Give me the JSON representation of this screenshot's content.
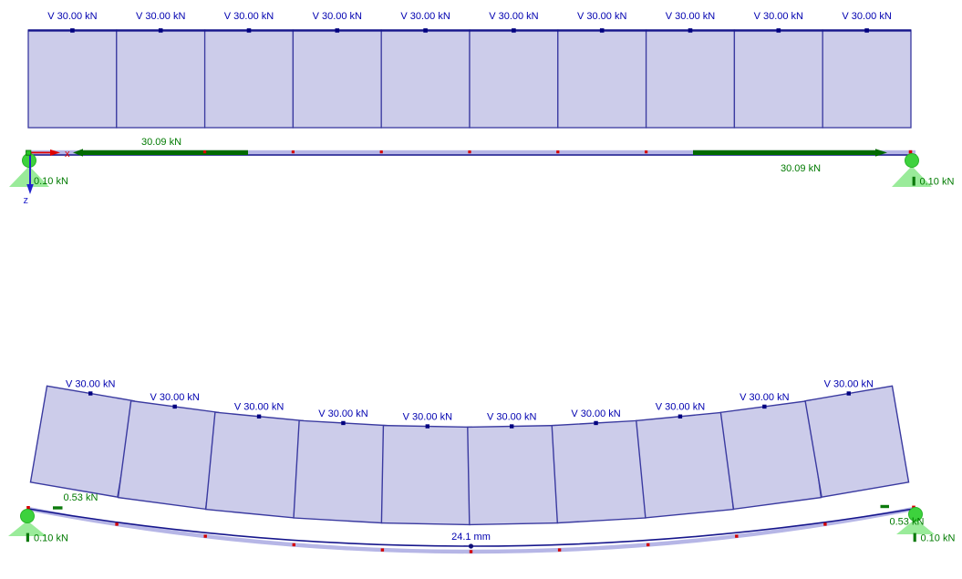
{
  "colors": {
    "background": "#ffffff",
    "panel_fill": "#ccccea",
    "panel_border": "#3a3aa0",
    "chord_line": "#16168c",
    "member_band": "#b6b6e6",
    "member_axis": "#16168c",
    "force_diagram_green": "#016a01",
    "text_green": "#007a00",
    "text_navy": "#0000b0",
    "support_circle_green": "#3dd23d",
    "support_triangle_green": "#9aeb9a",
    "reaction_bar_green": "#0c7a0c",
    "node_marker_green": "#27c427",
    "node_marker_red": "#d40000",
    "axis_x_red": "#e00000",
    "axis_z_blue": "#2222cc",
    "load_dot_navy": "#000080"
  },
  "load_view": {
    "panel_count": 10,
    "load_label": "V 30.00 kN",
    "axial_force_left_label": "30.09 kN",
    "axial_force_right_label": "30.09 kN",
    "reaction_left_label": "0.10 kN",
    "reaction_right_label": "0.10 kN",
    "axis_x_label": "x",
    "axis_z_label": "z"
  },
  "deformed_view": {
    "panel_count": 10,
    "load_label": "V 30.00 kN",
    "end_force_left_label": "0.53 kN",
    "end_force_right_label": "0.53 kN",
    "reaction_left_label": "0.10 kN",
    "reaction_right_label": "0.10 kN",
    "max_deflection_label": "24.1 mm"
  },
  "model_values": {
    "nodal_load_kN": 30.0,
    "axial_force_kN": 30.09,
    "vertical_reaction_kN": 0.1,
    "member_end_force_kN": 0.53,
    "max_deflection_mm": 24.1,
    "panels": 10
  }
}
